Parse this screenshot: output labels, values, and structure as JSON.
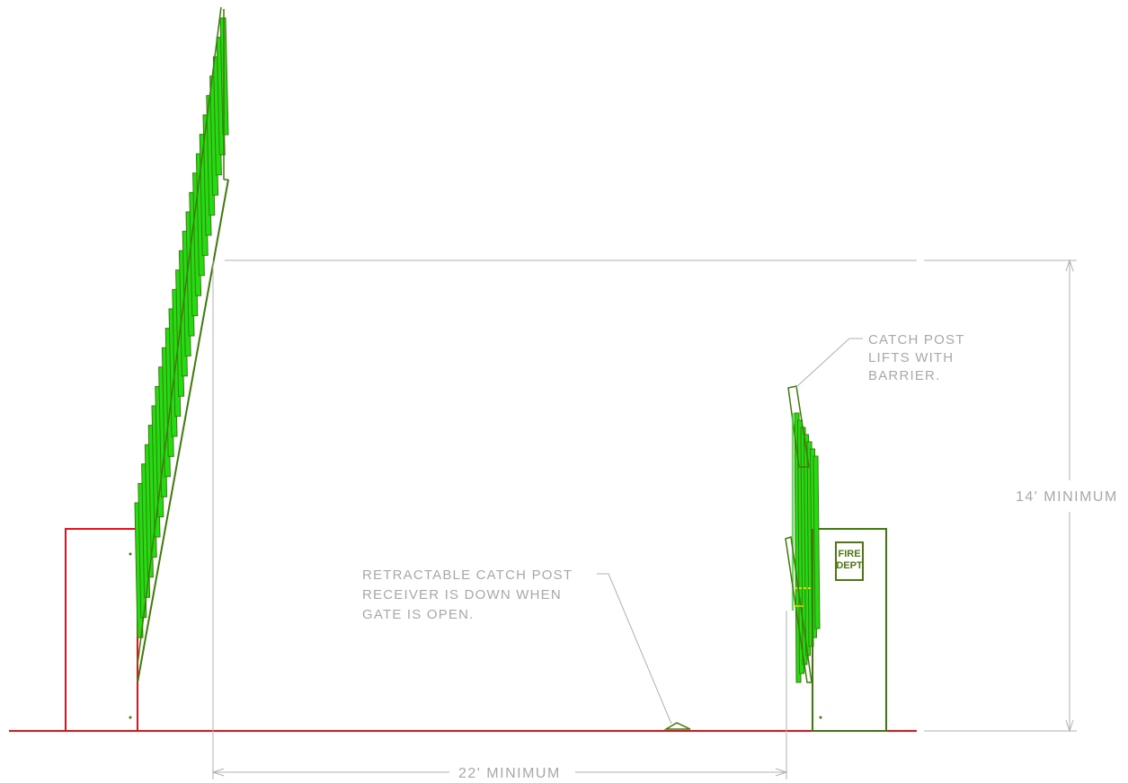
{
  "notes": {
    "catch_post": [
      "CATCH POST",
      "LIFTS WITH",
      "BARRIER."
    ],
    "receiver": [
      "RETRACTABLE CATCH POST",
      "RECEIVER IS DOWN WHEN",
      "GATE IS OPEN."
    ]
  },
  "dimensions": {
    "height": "14' MINIMUM",
    "width": "22' MINIMUM"
  },
  "sign": {
    "line1": "FIRE",
    "line2": "DEPT"
  },
  "colors": {
    "ground": "#e8121b",
    "left_housing": "#e8121b",
    "barrier_outline": "#3f7a0c",
    "barrier_fill": "#22dd11",
    "dimension": "#b0b0b0",
    "sign": "#4e7a12"
  }
}
